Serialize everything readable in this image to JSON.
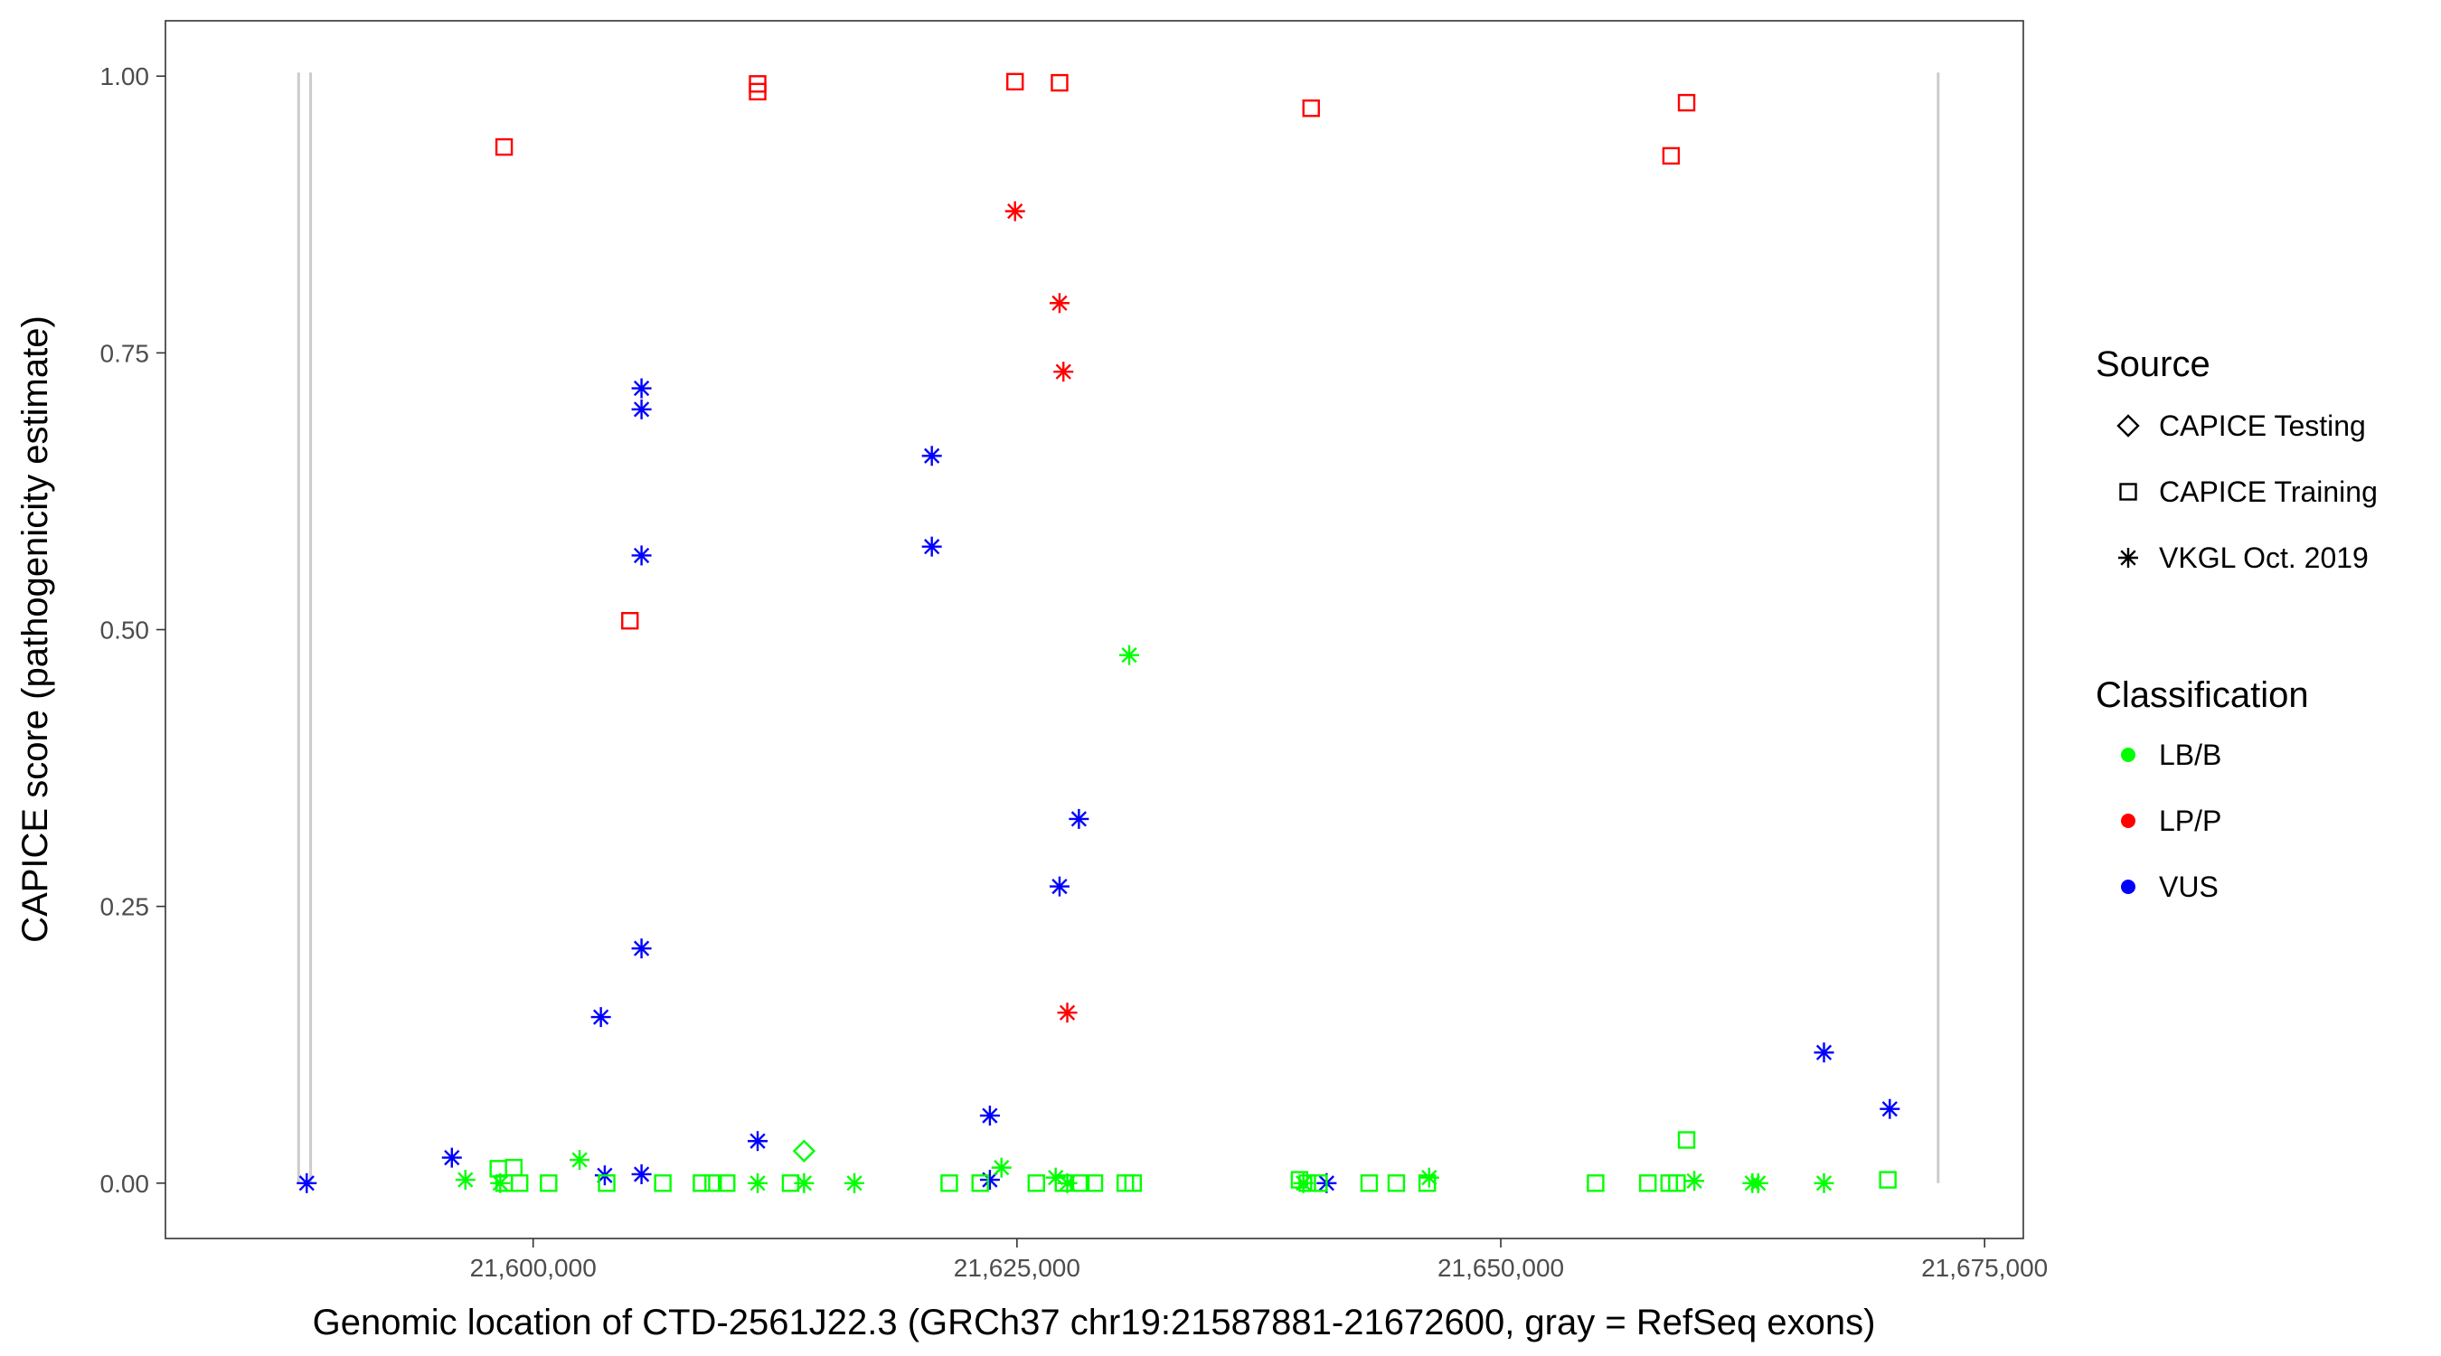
{
  "chart_data": {
    "type": "scatter",
    "xlabel": "Genomic location of CTD-2561J22.3 (GRCh37 chr19:21587881-21672600, gray = RefSeq exons)",
    "ylabel": "CAPICE score (pathogenicity estimate)",
    "xlim": [
      21581000,
      21677000
    ],
    "ylim": [
      -0.05,
      1.05
    ],
    "x_ticks": [
      21600000,
      21625000,
      21650000,
      21675000
    ],
    "x_tick_labels": [
      "21,600,000",
      "21,625,000",
      "21,650,000",
      "21,675,000"
    ],
    "y_ticks": [
      0,
      0.25,
      0.5,
      0.75,
      1
    ],
    "y_tick_labels": [
      "0.00",
      "0.25",
      "0.50",
      "0.75",
      "1.00"
    ],
    "exons": [
      21587881,
      21588500,
      21672600
    ],
    "grid": false,
    "legend_position": "right",
    "legend": {
      "source_title": "Source",
      "source_items": [
        {
          "label": "CAPICE Testing",
          "shape": "diamond"
        },
        {
          "label": "CAPICE Training",
          "shape": "square"
        },
        {
          "label": "VKGL Oct. 2019",
          "shape": "asterisk"
        }
      ],
      "class_title": "Classification",
      "class_items": [
        {
          "label": "LB/B",
          "color": "#00ff00"
        },
        {
          "label": "LP/P",
          "color": "#ff0000"
        },
        {
          "label": "VUS",
          "color": "#0000ff"
        }
      ]
    },
    "series": [
      {
        "source": "CAPICE Training",
        "classification": "LP/P",
        "points": [
          [
            21598500,
            0.936
          ],
          [
            21605000,
            0.508
          ],
          [
            21611600,
            0.993
          ],
          [
            21611600,
            0.986
          ],
          [
            21624900,
            0.995
          ],
          [
            21627200,
            0.994
          ],
          [
            21640200,
            0.971
          ],
          [
            21658800,
            0.928
          ],
          [
            21659600,
            0.976
          ]
        ]
      },
      {
        "source": "VKGL Oct. 2019",
        "classification": "LP/P",
        "points": [
          [
            21624900,
            0.878
          ],
          [
            21627200,
            0.795
          ],
          [
            21627400,
            0.733
          ],
          [
            21627600,
            0.154
          ]
        ]
      },
      {
        "source": "VKGL Oct. 2019",
        "classification": "VUS",
        "points": [
          [
            21588300,
            0.0
          ],
          [
            21595800,
            0.023
          ],
          [
            21603500,
            0.15
          ],
          [
            21603700,
            0.007
          ],
          [
            21605600,
            0.718
          ],
          [
            21605600,
            0.699
          ],
          [
            21605600,
            0.567
          ],
          [
            21605600,
            0.212
          ],
          [
            21605600,
            0.008
          ],
          [
            21611600,
            0.038
          ],
          [
            21620600,
            0.657
          ],
          [
            21620600,
            0.575
          ],
          [
            21623600,
            0.061
          ],
          [
            21623600,
            0.003
          ],
          [
            21627200,
            0.268
          ],
          [
            21628200,
            0.329
          ],
          [
            21641000,
            0.0
          ],
          [
            21666700,
            0.118
          ],
          [
            21670100,
            0.067
          ]
        ]
      },
      {
        "source": "VKGL Oct. 2019",
        "classification": "LB/B",
        "points": [
          [
            21596500,
            0.003
          ],
          [
            21598300,
            0.0
          ],
          [
            21602400,
            0.021
          ],
          [
            21611600,
            0.0
          ],
          [
            21614000,
            0.0
          ],
          [
            21616600,
            0.0
          ],
          [
            21624200,
            0.014
          ],
          [
            21627000,
            0.005
          ],
          [
            21627600,
            0.0
          ],
          [
            21630800,
            0.477
          ],
          [
            21639800,
            0.0
          ],
          [
            21646300,
            0.005
          ],
          [
            21660000,
            0.002
          ],
          [
            21663000,
            0.0
          ],
          [
            21663300,
            0.0
          ],
          [
            21666700,
            0.0
          ]
        ]
      },
      {
        "source": "CAPICE Training",
        "classification": "LB/B",
        "points": [
          [
            21598200,
            0.013
          ],
          [
            21598500,
            0.0
          ],
          [
            21599000,
            0.014
          ],
          [
            21599300,
            0.0
          ],
          [
            21600800,
            0.0
          ],
          [
            21603800,
            0.0
          ],
          [
            21606700,
            0.0
          ],
          [
            21608700,
            0.0
          ],
          [
            21609300,
            0.0
          ],
          [
            21610000,
            0.0
          ],
          [
            21613300,
            0.0
          ],
          [
            21621500,
            0.0
          ],
          [
            21623100,
            0.0
          ],
          [
            21626000,
            0.0
          ],
          [
            21627400,
            0.0
          ],
          [
            21628300,
            0.0
          ],
          [
            21629000,
            0.0
          ],
          [
            21630600,
            0.0
          ],
          [
            21631000,
            0.0
          ],
          [
            21639600,
            0.003
          ],
          [
            21640000,
            0.0
          ],
          [
            21640600,
            0.0
          ],
          [
            21643200,
            0.0
          ],
          [
            21644600,
            0.0
          ],
          [
            21646200,
            0.0
          ],
          [
            21654900,
            0.0
          ],
          [
            21657600,
            0.0
          ],
          [
            21658700,
            0.0
          ],
          [
            21659100,
            0.0
          ],
          [
            21659600,
            0.039
          ],
          [
            21670000,
            0.003
          ]
        ]
      },
      {
        "source": "CAPICE Testing",
        "classification": "LB/B",
        "points": [
          [
            21614000,
            0.029
          ]
        ]
      }
    ]
  }
}
